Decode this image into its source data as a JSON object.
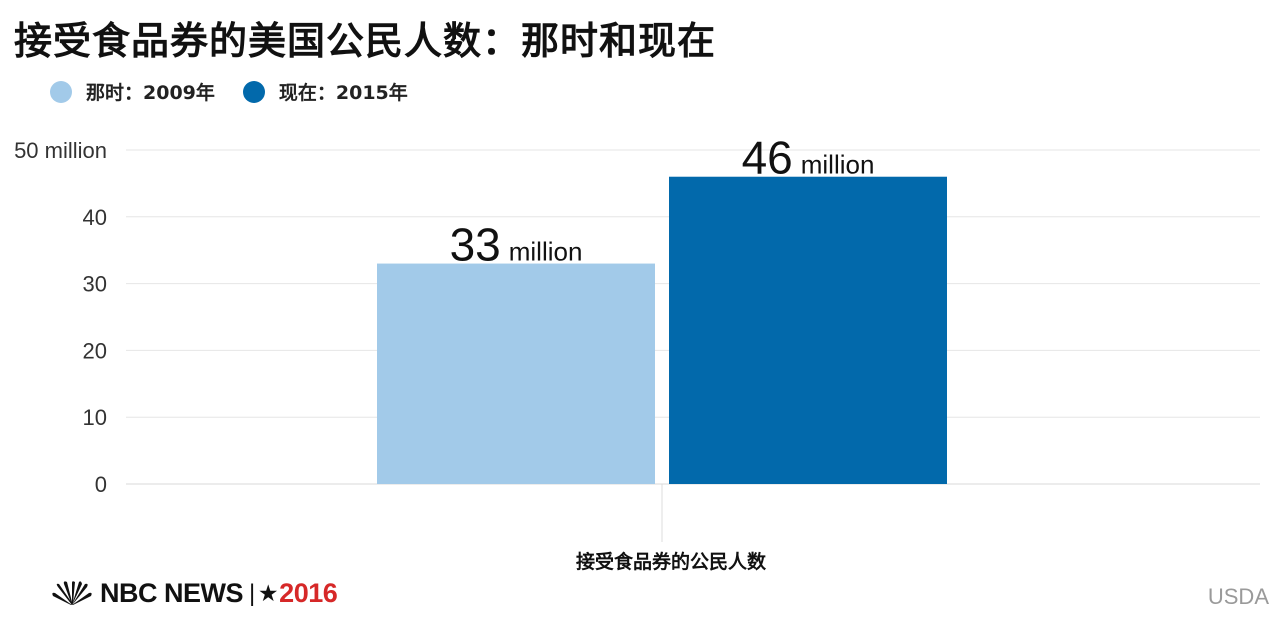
{
  "title": "接受食品券的美国公民人数：那时和现在",
  "legend": [
    {
      "label": "那时：2009年",
      "color": "#a2cae9"
    },
    {
      "label": "现在：2015年",
      "color": "#0269ab"
    }
  ],
  "chart_data": {
    "type": "bar",
    "categories": [
      "接受食品券的公民人数"
    ],
    "series": [
      {
        "name": "那时：2009年",
        "values": [
          33
        ],
        "color": "#a2cae9",
        "label_number": "33",
        "label_unit": "million"
      },
      {
        "name": "现在：2015年",
        "values": [
          46
        ],
        "color": "#0269ab",
        "label_number": "46",
        "label_unit": "million"
      }
    ],
    "yticks": [
      "0",
      "10",
      "20",
      "30",
      "40",
      "50 million"
    ],
    "ylim": [
      0,
      50
    ],
    "grid": true,
    "legend_position": "top-left"
  },
  "brand": {
    "name": "NBC NEWS",
    "separator": "|",
    "star": "★",
    "year": "2016",
    "logo": "nbc-peacock-icon"
  },
  "source": "USDA"
}
